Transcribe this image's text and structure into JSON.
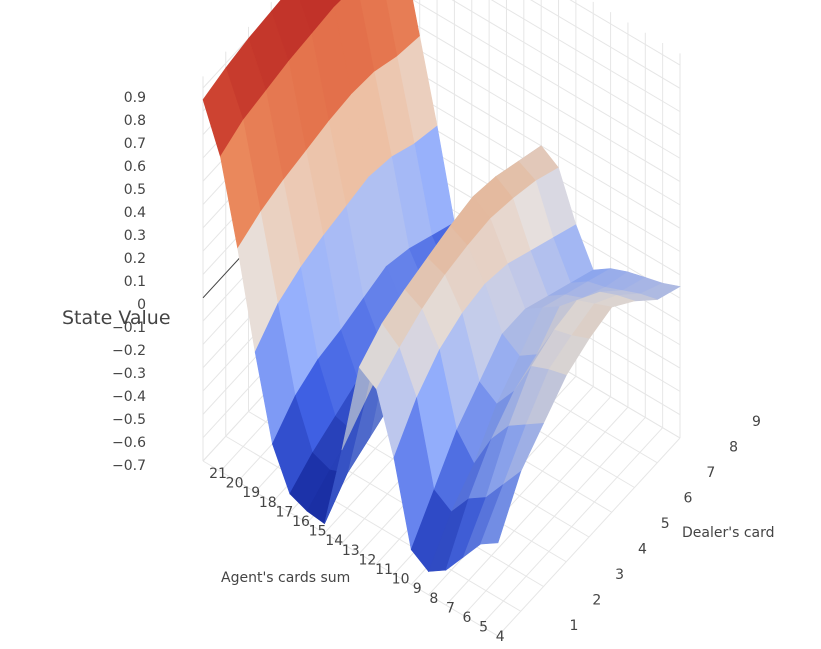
{
  "chart_data": {
    "type": "surface",
    "title": "",
    "zlabel": "State Value",
    "xlabel": "Agent's cards sum",
    "ylabel": "Dealer's card",
    "z_range": [
      -0.7,
      0.95
    ],
    "z_ticks": [
      "0.9",
      "0.8",
      "0.7",
      "0.6",
      "0.5",
      "0.4",
      "0.3",
      "0.2",
      "0.1",
      "0",
      "−0.1",
      "−0.2",
      "−0.3",
      "−0.4",
      "−0.5",
      "−0.6",
      "−0.7"
    ],
    "agent_sum_ticks": [
      "21",
      "20",
      "19",
      "18",
      "17",
      "16",
      "15",
      "14",
      "13",
      "12",
      "11",
      "10",
      "9",
      "8",
      "7",
      "6",
      "5",
      "4"
    ],
    "dealer_ticks": [
      "1",
      "2",
      "3",
      "4",
      "5",
      "6",
      "7",
      "8",
      "9"
    ],
    "colorscale": [
      "#0a1a8c",
      "#3c5bd8",
      "#8fa8f0",
      "#ddd6d2",
      "#e69a6a",
      "#d25638",
      "#a8161c"
    ],
    "grid": true,
    "dealer_card": [
      1,
      2,
      3,
      4,
      5,
      6,
      7,
      8,
      9
    ],
    "agent_sum": [
      21,
      20,
      19,
      18,
      17,
      16,
      15,
      14,
      13,
      12,
      11,
      10,
      9,
      8,
      7,
      6,
      5,
      4
    ],
    "values": [
      [
        0.85,
        0.88,
        0.9,
        0.91,
        0.92,
        0.93,
        0.92,
        0.9,
        0.88
      ],
      [
        0.65,
        0.7,
        0.72,
        0.74,
        0.75,
        0.76,
        0.75,
        0.72,
        0.7
      ],
      [
        0.3,
        0.35,
        0.38,
        0.4,
        0.42,
        0.43,
        0.42,
        0.38,
        0.36
      ],
      [
        -0.1,
        0.0,
        0.05,
        0.08,
        0.1,
        0.12,
        0.1,
        0.05,
        0.02
      ],
      [
        -0.45,
        -0.35,
        -0.3,
        -0.28,
        -0.25,
        -0.22,
        -0.25,
        -0.3,
        -0.35
      ],
      [
        -0.62,
        -0.55,
        -0.5,
        -0.45,
        -0.4,
        -0.35,
        -0.38,
        -0.42,
        -0.48
      ],
      [
        -0.65,
        -0.58,
        -0.52,
        -0.48,
        -0.42,
        -0.38,
        -0.4,
        -0.45,
        -0.5
      ],
      [
        -0.66,
        -0.55,
        -0.5,
        -0.45,
        -0.4,
        -0.38,
        -0.4,
        -0.45,
        -0.5
      ],
      [
        -0.3,
        -0.2,
        -0.1,
        -0.05,
        0.0,
        0.02,
        -0.02,
        -0.05,
        -0.1
      ],
      [
        0.1,
        0.18,
        0.22,
        0.25,
        0.28,
        0.3,
        0.28,
        0.24,
        0.2
      ],
      [
        0.05,
        0.12,
        0.18,
        0.22,
        0.24,
        0.25,
        0.23,
        0.2,
        0.15
      ],
      [
        -0.2,
        -0.05,
        0.05,
        0.1,
        0.12,
        0.1,
        0.05,
        0.0,
        -0.05
      ],
      [
        -0.55,
        -0.4,
        -0.25,
        -0.15,
        -0.05,
        -0.05,
        -0.1,
        -0.15,
        -0.2
      ],
      [
        -0.6,
        -0.45,
        -0.35,
        -0.2,
        -0.1,
        0.0,
        -0.05,
        -0.1,
        -0.15
      ],
      [
        -0.55,
        -0.35,
        -0.2,
        -0.1,
        -0.05,
        0.05,
        -0.02,
        -0.08,
        -0.12
      ],
      [
        -0.45,
        -0.3,
        -0.1,
        0.05,
        0.1,
        0.12,
        0.05,
        -0.05,
        -0.1
      ],
      [
        -0.35,
        -0.2,
        -0.05,
        0.08,
        0.12,
        0.15,
        0.08,
        -0.02,
        -0.08
      ],
      [
        -0.3,
        -0.1,
        0.0,
        0.1,
        0.15,
        0.18,
        0.1,
        0.0,
        -0.05
      ]
    ]
  }
}
